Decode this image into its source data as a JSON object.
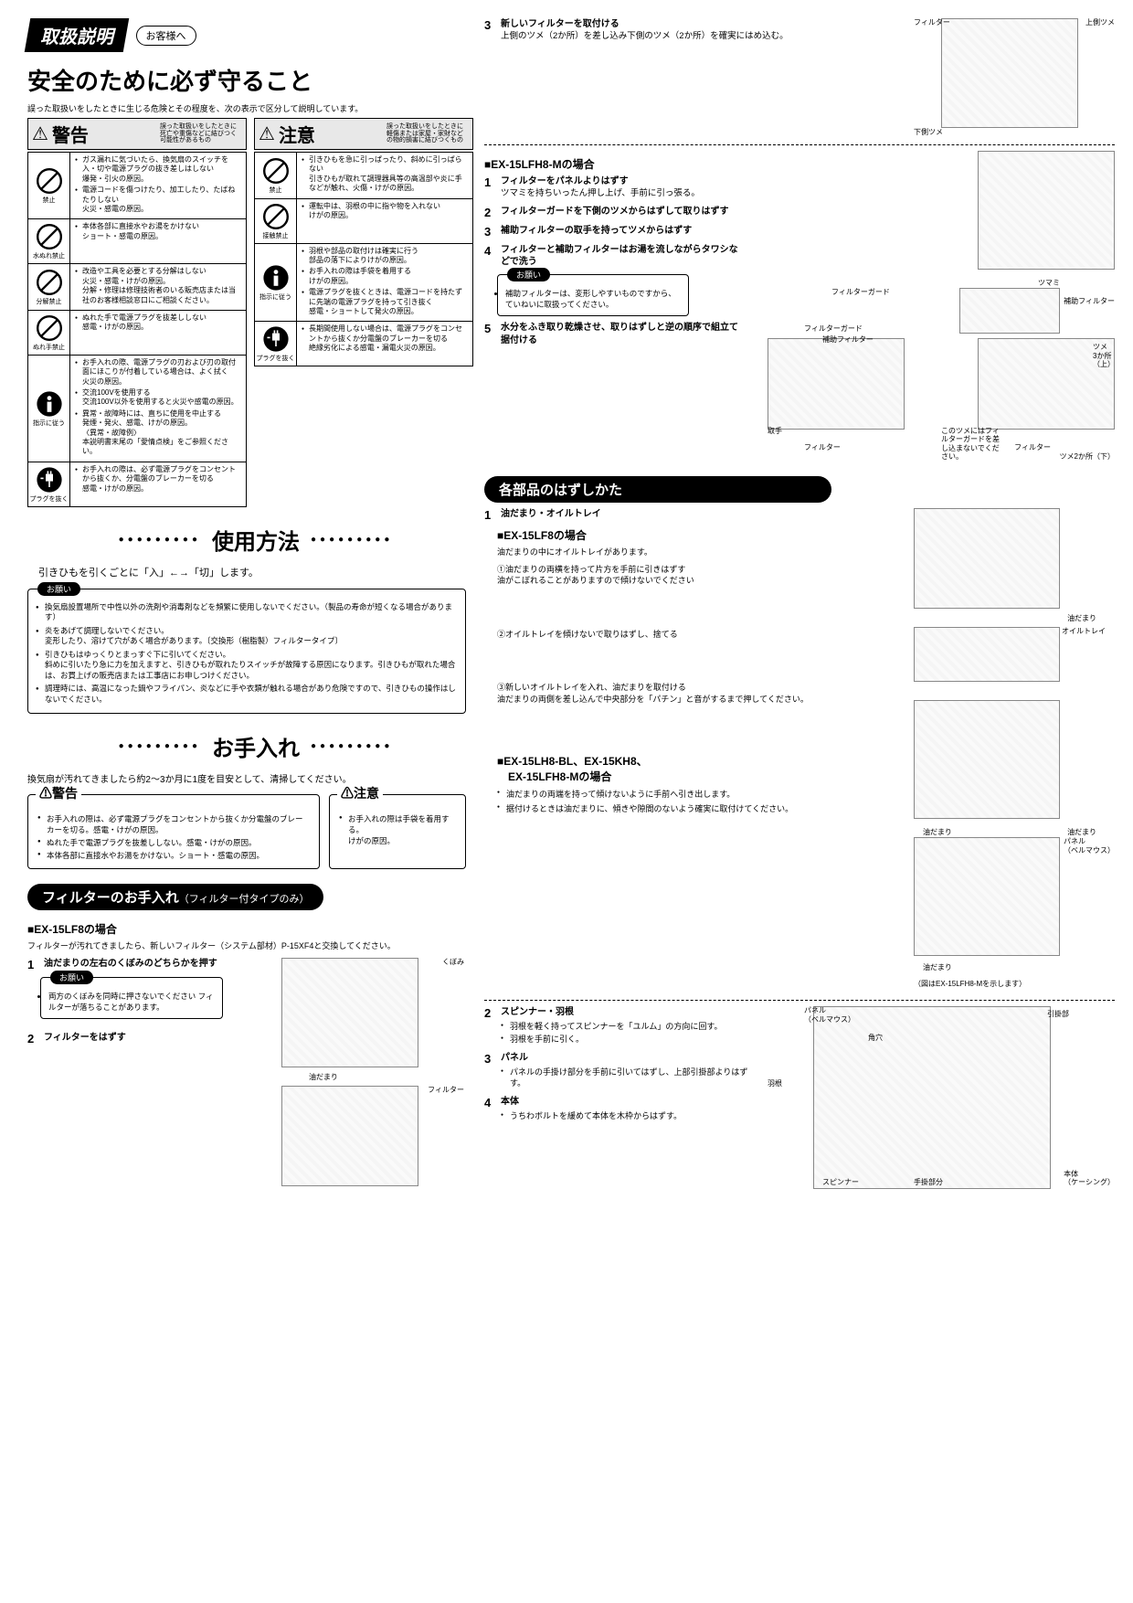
{
  "header": {
    "title": "取扱説明",
    "customer": "お客様へ",
    "safety_heading": "安全のために必ず守ること",
    "intro": "誤った取扱いをしたときに生じる危険とその程度を、次の表示で区分して説明しています。"
  },
  "warning": {
    "word": "警告",
    "desc": "誤った取扱いをしたときに死亡や重傷などに結びつく可能性があるもの",
    "rows": [
      {
        "icon": "禁止",
        "items": [
          "ガス漏れに気づいたら、換気扇のスイッチを入・切や電源プラグの抜き差しはしない\n爆発・引火の原因。",
          "電源コードを傷つけたり、加工したり、たばねたりしない\n火災・感電の原因。"
        ]
      },
      {
        "icon": "水ぬれ禁止",
        "items": [
          "本体各部に直接水やお湯をかけない\nショート・感電の原因。"
        ]
      },
      {
        "icon": "分解禁止",
        "items": [
          "改造や工具を必要とする分解はしない\n火災・感電・けがの原因。\n分解・修理は修理技術者のいる販売店または当社のお客様相談窓口にご相談ください。"
        ]
      },
      {
        "icon": "ぬれ手禁止",
        "items": [
          "ぬれた手で電源プラグを抜差ししない\n感電・けがの原因。"
        ]
      },
      {
        "icon": "指示に従う",
        "items": [
          "お手入れの際、電源プラグの刃および刃の取付面にほこりが付着している場合は、よく拭く\n火災の原因。",
          "交流100Vを使用する\n交流100V以外を使用すると火災や感電の原因。",
          "異常・故障時には、直ちに使用を中止する\n発煙・発火、感電、けがの原因。\n〈異常・故障例〉\n本説明書末尾の「愛情点検」をご参照ください。"
        ]
      },
      {
        "icon": "プラグを抜く",
        "items": [
          "お手入れの際は、必ず電源プラグをコンセントから抜くか、分電盤のブレーカーを切る\n感電・けがの原因。"
        ]
      }
    ]
  },
  "caution": {
    "word": "注意",
    "desc": "誤った取扱いをしたときに軽傷または家屋・家財などの物的損害に結びつくもの",
    "rows": [
      {
        "icon": "禁止",
        "items": [
          "引きひもを急に引っぱったり、斜めに引っぱらない\n引きひもが取れて調理器具等の高温部や炎に手などが触れ、火傷・けがの原因。"
        ]
      },
      {
        "icon": "接触禁止",
        "items": [
          "運転中は、羽根の中に指や物を入れない\nけがの原因。"
        ]
      },
      {
        "icon": "指示に従う",
        "items": [
          "羽根や部品の取付けは確実に行う\n部品の落下によりけがの原因。",
          "お手入れの際は手袋を着用する\nけがの原因。",
          "電源プラグを抜くときは、電源コードを持たずに先端の電源プラグを持って引き抜く\n感電・ショートして発火の原因。"
        ]
      },
      {
        "icon": "プラグを抜く",
        "items": [
          "長期間使用しない場合は、電源プラグをコンセントから抜くか分電盤のブレーカーを切る\n絶縁劣化による感電・漏電火災の原因。"
        ]
      }
    ]
  },
  "usage": {
    "title": "使用方法",
    "text": "引きひもを引くごとに「入」←→「切」します。",
    "notice_label": "お願い",
    "notice_items": [
      "換気扇設置場所で中性以外の洗剤や消毒剤などを頻繁に使用しないでください。（製品の寿命が短くなる場合があります）",
      "炎をあげて調理しないでください。\n変形したり、溶けて穴があく場合があります。〔交換形（樹脂製）フィルタータイプ〕",
      "引きひもはゆっくりとまっすぐ下に引いてください。\n斜めに引いたり急に力を加えますと、引きひもが取れたりスイッチが故障する原因になります。引きひもが取れた場合は、お買上げの販売店または工事店にお申しつけください。",
      "調理時には、高温になった鍋やフライパン、炎などに手や衣類が触れる場合があり危険ですので、引きひもの操作はしないでください。"
    ]
  },
  "maintenance": {
    "title": "お手入れ",
    "subtitle": "換気扇が汚れてきましたら約2〜3か月に1度を目安として、清掃してください。",
    "warn_items": [
      "お手入れの際は、必ず電源プラグをコンセントから抜くか分電盤のブレーカーを切る。感電・けがの原因。",
      "ぬれた手で電源プラグを抜差ししない。感電・けがの原因。",
      "本体各部に直接水やお湯をかけない。ショート・感電の原因。"
    ],
    "caut_items": [
      "お手入れの際は手袋を着用する。\nけがの原因。"
    ]
  },
  "filter": {
    "title": "フィルターのお手入れ",
    "sub": "（フィルター付タイプのみ）",
    "model_a": "■EX-15LF8の場合",
    "model_a_text": "フィルターが汚れてきましたら、新しいフィルター（システム部材）P-15XF4と交換してください。",
    "step1": {
      "num": "1",
      "title": "油だまりの左右のくぼみのどちらかを押す",
      "notice": "両方のくぼみを同時に押さないでください\nフィルターが落ちることがあります。"
    },
    "step2": {
      "num": "2",
      "title": "フィルターをはずす"
    },
    "step3": {
      "num": "3",
      "title": "新しいフィルターを取付ける",
      "body": "上側のツメ（2か所）を差し込み下側のツメ（2か所）を確実にはめ込む。"
    },
    "labels_a": {
      "kubo": "くぼみ",
      "abura": "油だまり",
      "filter": "フィルター",
      "upper": "上側ツメ",
      "lower": "下側ツメ"
    },
    "model_b": "■EX-15LFH8-Mの場合",
    "b_steps": [
      {
        "num": "1",
        "title": "フィルターをパネルよりはずす",
        "body": "ツマミを持ちいったん押し上げ、手前に引っ張る。"
      },
      {
        "num": "2",
        "title": "フィルターガードを下側のツメからはずして取りはずす"
      },
      {
        "num": "3",
        "title": "補助フィルターの取手を持ってツメからはずす"
      },
      {
        "num": "4",
        "title": "フィルターと補助フィルターはお湯を流しながらタワシなどで洗う"
      }
    ],
    "b_notice": "補助フィルターは、変形しやすいものですから、ていねいに取扱ってください。",
    "b_step5": {
      "num": "5",
      "title": "水分をふき取り乾燥させ、取りはずしと逆の順序で組立て据付ける"
    },
    "labels_b": {
      "tsumami": "ツマミ",
      "fguard": "フィルターガード",
      "hojo": "補助フィルター",
      "totte": "取手",
      "filter": "フィルター",
      "tsume3": "ツメ\n3か所\n（上）",
      "tsume2": "ツメ2か所（下）",
      "note1": "このツメにはフィルターガードを差し込まないでください。"
    }
  },
  "disassembly": {
    "title": "各部品のはずしかた",
    "section1": {
      "num": "1",
      "title": "油だまり・オイルトレイ",
      "model": "■EX-15LF8の場合",
      "intro": "油だまりの中にオイルトレイがあります。",
      "sub1": "①油だまりの両横を持って片方を手前に引きはずす\n油がこぼれることがありますので傾けないでください",
      "sub2": "②オイルトレイを傾けないで取りはずし、捨てる",
      "sub3": "③新しいオイルトレイを入れ、油だまりを取付ける\n油だまりの両側を差し込んで中央部分を「パチン」と音がするまで押してください。",
      "model2": "■EX-15LH8-BL、EX-15KH8、\n　EX-15LFH8-Mの場合",
      "m2_items": [
        "油だまりの両端を持って傾けないように手前へ引き出します。",
        "据付けるときは油だまりに、傾きや隙間のないよう確実に取付けてください。"
      ],
      "m2_note": "（図はEX-15LFH8-Mを示します）",
      "labels": {
        "abura": "油だまり",
        "oil": "オイルトレイ",
        "panel": "パネル\n（ベルマウス）"
      }
    },
    "section2": {
      "num": "2",
      "title": "スピンナー・羽根",
      "items": [
        "羽根を軽く持ってスピンナーを「ユルム」の方向に回す。",
        "羽根を手前に引く。"
      ]
    },
    "section3": {
      "num": "3",
      "title": "パネル",
      "items": [
        "パネルの手掛け部分を手前に引いてはずし、上部引掛部よりはずす。"
      ]
    },
    "section4": {
      "num": "4",
      "title": "本体",
      "items": [
        "うちわボルトを緩めて本体を木枠からはずす。"
      ]
    },
    "labels2": {
      "panel": "パネル\n（ベルマウス）",
      "hikake": "引掛部",
      "kado": "角穴",
      "hane": "羽根",
      "spinner": "スピンナー",
      "tekake": "手掛部分",
      "hontai": "本体\n（ケーシング）"
    }
  },
  "colors": {
    "black": "#000000",
    "gray": "#e8e8e8",
    "white": "#ffffff"
  }
}
